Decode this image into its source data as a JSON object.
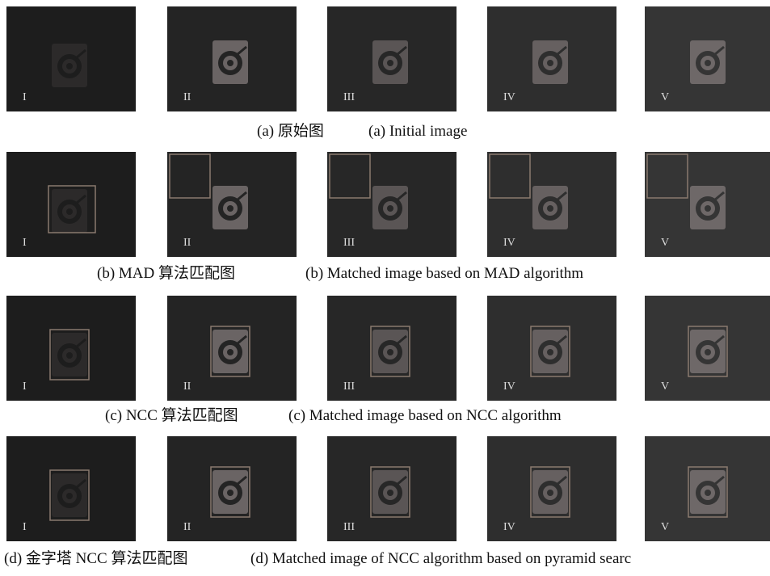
{
  "rows": [
    {
      "caption_cn": "(a)  原始图",
      "caption_en": "(a) Initial image",
      "panels": [
        "I",
        "II",
        "III",
        "IV",
        "V"
      ]
    },
    {
      "caption_cn": "(b) MAD 算法匹配图",
      "caption_en": "(b) Matched image based on MAD algorithm",
      "panels": [
        "I",
        "II",
        "III",
        "IV",
        "V"
      ]
    },
    {
      "caption_cn": "(c) NCC 算法匹配图",
      "caption_en": "(c) Matched image based on NCC algorithm",
      "panels": [
        "I",
        "II",
        "III",
        "IV",
        "V"
      ]
    },
    {
      "caption_cn": "(d)  金字塔 NCC 算法匹配图",
      "caption_en": "(d) Matched image of NCC algorithm based on pyramid searc",
      "panels": [
        "I",
        "II",
        "III",
        "IV",
        "V"
      ]
    }
  ]
}
